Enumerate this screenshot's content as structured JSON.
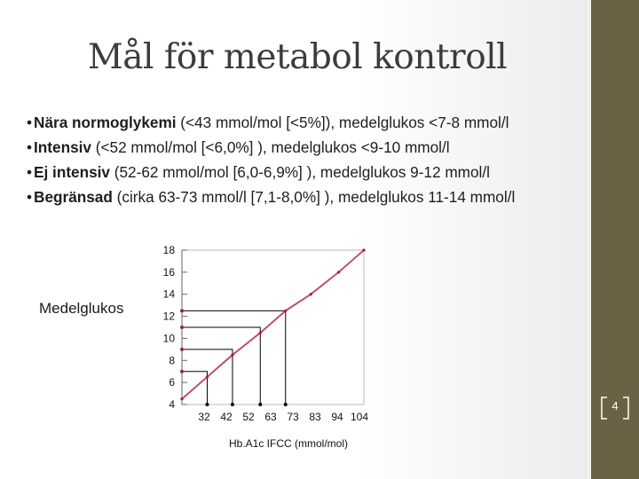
{
  "slide": {
    "title": "Mål för metabol kontroll",
    "page_number": "4"
  },
  "bullets": [
    {
      "bold": "Nära normoglykemi",
      "rest": " (<43 mmol/mol [<5%]), medelglukos <7-8 mmol/l"
    },
    {
      "bold": "Intensiv",
      "rest": " (<52 mmol/mol [<6,0%] ), medelglukos <9-10 mmol/l"
    },
    {
      "bold": "Ej intensiv",
      "rest": " (52-62 mmol/mol [6,0-6,9%] ), medelglukos 9-12 mmol/l"
    },
    {
      "bold": "Begränsad",
      "rest": " (cirka 63-73 mmol/l [7,1-8,0%] ), medelglukos 11-14 mmol/l"
    }
  ],
  "colors": {
    "line": "#c0506a",
    "marker": "#a0203a",
    "guide": "#000000",
    "sidebar": "#6b6245"
  },
  "chart_data": {
    "type": "line",
    "ylabel": "Medelglukos",
    "xlabel": "Hb.A1c IFCC (mmol/mol)",
    "y_ticks": [
      "18",
      "16",
      "14",
      "12",
      "10",
      "8",
      "6",
      "4"
    ],
    "x_ticks": [
      "32",
      "42",
      "52",
      "63",
      "73",
      "83",
      "94",
      "104"
    ],
    "ylim": [
      4,
      18
    ],
    "xlim": [
      32,
      104
    ],
    "series": [
      {
        "x": [
          32,
          42,
          52,
          63,
          73,
          83,
          94,
          104
        ],
        "values": [
          4.5,
          6.5,
          8.5,
          10.5,
          12.5,
          14.0,
          16.0,
          18.0
        ]
      }
    ],
    "reference_points": [
      {
        "x": 42,
        "y": 7.0
      },
      {
        "x": 52,
        "y": 9.0
      },
      {
        "x": 63,
        "y": 11.0
      },
      {
        "x": 73,
        "y": 12.5
      }
    ],
    "grid": false
  }
}
